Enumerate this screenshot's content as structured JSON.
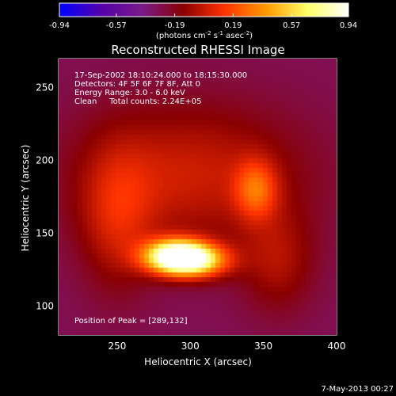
{
  "chart_data": {
    "type": "heatmap",
    "title": "Reconstructed RHESSI Image",
    "xlabel": "Heliocentric X (arcsec)",
    "ylabel": "Heliocentric Y (arcsec)",
    "xlim": [
      210,
      400
    ],
    "ylim": [
      80,
      270
    ],
    "xticks": [
      250,
      300,
      350,
      400
    ],
    "yticks": [
      100,
      150,
      200,
      250
    ],
    "colorbar": {
      "label_prefix": "(photons cm",
      "label_exp1": "-2",
      "label_mid1": " s",
      "label_exp2": "-1",
      "label_mid2": " asec",
      "label_exp3": "-2",
      "label_suffix": ")",
      "range": [
        -0.94,
        0.94
      ],
      "ticks": [
        "-0.94",
        "-0.57",
        "-0.19",
        "0.19",
        "0.57",
        "0.94"
      ],
      "colors": [
        "#0000ff",
        "#5500aa",
        "#7a1a8a",
        "#8a0000",
        "#ff3300",
        "#ff9900",
        "#ffff66",
        "#ffffff"
      ]
    },
    "annotations": [
      "17-Sep-2002 18:10:24.000 to 18:15:30.000",
      "Detectors: 4F 5F 6F 7F 8F, Att 0",
      "Energy Range: 3.0 - 6.0 keV",
      "Clean     Total counts: 2.24E+05"
    ],
    "peak_label": "Position of Peak = [289,132]",
    "peak": [
      289,
      132
    ],
    "sources": [
      {
        "x": 290,
        "y": 134,
        "amp": 0.94,
        "sx": 15,
        "sy": 8
      },
      {
        "x": 305,
        "y": 131,
        "amp": 0.55,
        "sx": 16,
        "sy": 8
      },
      {
        "x": 345,
        "y": 180,
        "amp": 0.45,
        "sx": 10,
        "sy": 14
      },
      {
        "x": 300,
        "y": 190,
        "amp": 0.35,
        "sx": 55,
        "sy": 35
      },
      {
        "x": 250,
        "y": 160,
        "amp": 0.3,
        "sx": 18,
        "sy": 35
      },
      {
        "x": 360,
        "y": 130,
        "amp": 0.25,
        "sx": 18,
        "sy": 25
      }
    ],
    "background_level": -0.3
  },
  "footer": {
    "timestamp": "7-May-2013 00:27"
  }
}
